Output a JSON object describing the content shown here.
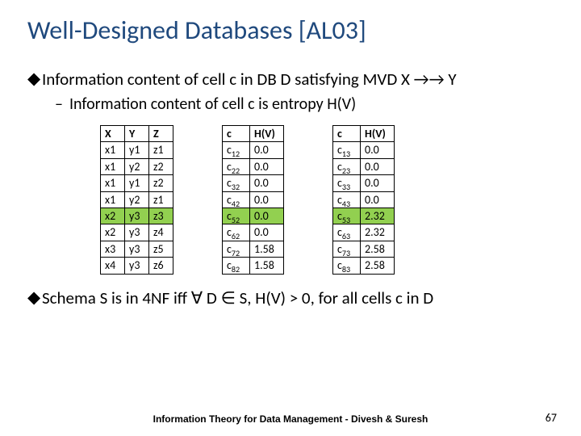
{
  "title": "Well-Designed Databases [AL03]",
  "bullets": {
    "l1a": "Information content of cell c in DB D satisfying MVD X →→   Y",
    "l2a": "Information content of cell c is entropy H(V)",
    "l1b": "Schema S is in 4NF iff ∀ D ∈ S, H(V) > 0, for all cells c in D"
  },
  "table_xyz": {
    "headers": [
      "X",
      "Y",
      "Z"
    ],
    "rows": [
      [
        "x1",
        "y1",
        "z1"
      ],
      [
        "x1",
        "y2",
        "z2"
      ],
      [
        "x1",
        "y1",
        "z2"
      ],
      [
        "x1",
        "y2",
        "z1"
      ],
      [
        "x2",
        "y3",
        "z3"
      ],
      [
        "x2",
        "y3",
        "z4"
      ],
      [
        "x3",
        "y3",
        "z5"
      ],
      [
        "x4",
        "y3",
        "z6"
      ]
    ],
    "highlight_row_index": 4,
    "highlight_color": "#92d050"
  },
  "table_hv2": {
    "headers": [
      "c",
      "H(V)"
    ],
    "rows": [
      {
        "c_sub": "12",
        "hv": "0.0"
      },
      {
        "c_sub": "22",
        "hv": "0.0"
      },
      {
        "c_sub": "32",
        "hv": "0.0"
      },
      {
        "c_sub": "42",
        "hv": "0.0"
      },
      {
        "c_sub": "52",
        "hv": "0.0"
      },
      {
        "c_sub": "62",
        "hv": "0.0"
      },
      {
        "c_sub": "72",
        "hv": "1.58"
      },
      {
        "c_sub": "82",
        "hv": "1.58"
      }
    ],
    "highlight_row_index": 4
  },
  "table_hv3": {
    "headers": [
      "c",
      "H(V)"
    ],
    "rows": [
      {
        "c_sub": "13",
        "hv": "0.0"
      },
      {
        "c_sub": "23",
        "hv": "0.0"
      },
      {
        "c_sub": "33",
        "hv": "0.0"
      },
      {
        "c_sub": "43",
        "hv": "0.0"
      },
      {
        "c_sub": "53",
        "hv": "2.32"
      },
      {
        "c_sub": "63",
        "hv": "2.32"
      },
      {
        "c_sub": "73",
        "hv": "2.58"
      },
      {
        "c_sub": "83",
        "hv": "2.58"
      }
    ],
    "highlight_row_index": 4
  },
  "footer": "Information Theory for Data Management - Divesh & Suresh",
  "page_number": "67",
  "colors": {
    "title": "#1f497d",
    "highlight": "#92d050",
    "background": "#ffffff",
    "text": "#000000",
    "border": "#000000"
  },
  "fonts": {
    "title_family": "Gill Sans MT",
    "title_size_pt": 32,
    "body_family": "Calibri",
    "body_size_pt": 21,
    "table_size_pt": 14,
    "footer_family": "Tahoma",
    "footer_size_pt": 12
  }
}
